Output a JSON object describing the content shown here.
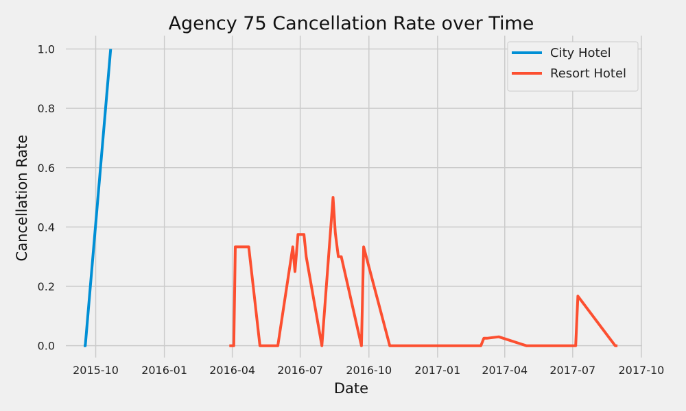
{
  "chart_data": {
    "type": "line",
    "title": "Agency 75 Cancellation Rate over Time",
    "xlabel": "Date",
    "ylabel": "Cancellation Rate",
    "x_range": [
      "2015-08-22",
      "2017-10-02"
    ],
    "ylim": [
      -0.04,
      1.045
    ],
    "x_ticks": [
      {
        "date": "2015-10-01",
        "label": "2015-10"
      },
      {
        "date": "2016-01-01",
        "label": "2016-01"
      },
      {
        "date": "2016-04-01",
        "label": "2016-04"
      },
      {
        "date": "2016-07-01",
        "label": "2016-07"
      },
      {
        "date": "2016-10-01",
        "label": "2016-10"
      },
      {
        "date": "2017-01-01",
        "label": "2017-01"
      },
      {
        "date": "2017-04-01",
        "label": "2017-04"
      },
      {
        "date": "2017-07-01",
        "label": "2017-07"
      },
      {
        "date": "2017-10-01",
        "label": "2017-10"
      }
    ],
    "y_ticks": [
      {
        "value": 0.0,
        "label": "0.0"
      },
      {
        "value": 0.2,
        "label": "0.2"
      },
      {
        "value": 0.4,
        "label": "0.4"
      },
      {
        "value": 0.6,
        "label": "0.6"
      },
      {
        "value": 0.8,
        "label": "0.8"
      },
      {
        "value": 1.0,
        "label": "1.0"
      }
    ],
    "grid": true,
    "legend_position": "top-right",
    "series": [
      {
        "name": "City Hotel",
        "color": "#008fd5",
        "x": [
          "2015-09-15",
          "2015-09-17",
          "2015-10-21"
        ],
        "y": [
          0.0,
          0.0,
          1.0
        ]
      },
      {
        "name": "Resort Hotel",
        "color": "#fc4f30",
        "x": [
          "2016-03-28",
          "2016-04-03",
          "2016-04-05",
          "2016-04-23",
          "2016-05-08",
          "2016-05-16",
          "2016-06-01",
          "2016-06-21",
          "2016-06-24",
          "2016-06-28",
          "2016-07-06",
          "2016-07-09",
          "2016-07-30",
          "2016-08-14",
          "2016-08-17",
          "2016-08-21",
          "2016-08-25",
          "2016-09-21",
          "2016-09-24",
          "2016-10-29",
          "2017-02-28",
          "2017-03-04",
          "2017-03-08",
          "2017-03-24",
          "2017-04-30",
          "2017-07-05",
          "2017-07-08",
          "2017-08-27",
          "2017-08-30"
        ],
        "y": [
          0.0,
          0.0,
          0.333,
          0.333,
          0.0,
          0.0,
          0.0,
          0.333,
          0.25,
          0.375,
          0.375,
          0.3,
          0.0,
          0.5,
          0.38,
          0.3,
          0.3,
          0.0,
          0.333,
          0.0,
          0.0,
          0.025,
          0.025,
          0.03,
          0.0,
          0.0,
          0.167,
          0.0,
          0.0
        ]
      }
    ]
  }
}
